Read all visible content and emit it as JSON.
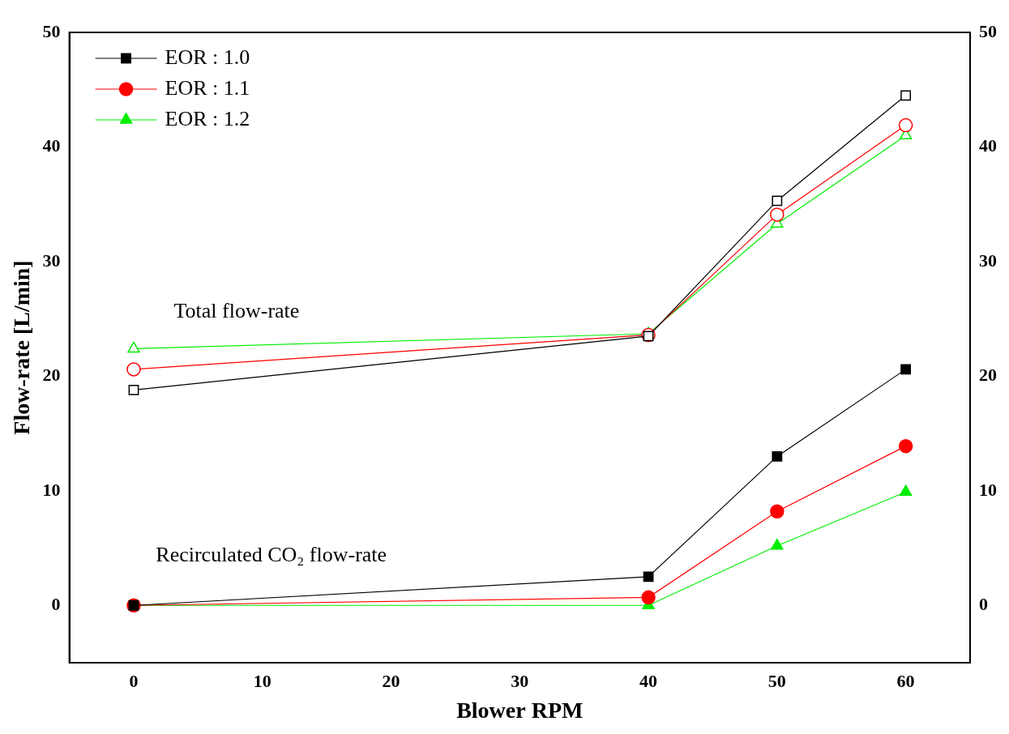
{
  "chart_data": {
    "type": "line",
    "x_label": "Blower RPM",
    "y_label": "Flow-rate [L/min]",
    "x": [
      0,
      40,
      50,
      60
    ],
    "xlim": [
      -5,
      65
    ],
    "xticks": [
      0,
      10,
      20,
      30,
      40,
      50,
      60
    ],
    "ylim": [
      -5,
      50
    ],
    "yticks": [
      0,
      10,
      20,
      30,
      40,
      50
    ],
    "y2lim": [
      -5,
      50
    ],
    "y2ticks": [
      0,
      10,
      20,
      30,
      40,
      50
    ],
    "grid": false,
    "legend": "upper left",
    "annotations": [
      "Total flow-rate",
      "Recirculated CO₂ flow-rate"
    ],
    "series": [
      {
        "name": "EOR : 1.0",
        "color": "#000000",
        "marker": "square",
        "values": [
          0,
          2.5,
          13.0,
          20.6
        ],
        "total": [
          18.8,
          23.5,
          35.3,
          44.5
        ]
      },
      {
        "name": "EOR : 1.1",
        "color": "#ff0000",
        "marker": "circle",
        "values": [
          0,
          0.7,
          8.2,
          13.9
        ],
        "total": [
          20.6,
          23.6,
          34.1,
          41.9
        ]
      },
      {
        "name": "EOR : 1.2",
        "color": "#00ee00",
        "marker": "triangle",
        "values": [
          0,
          0,
          5.2,
          9.9
        ],
        "total": [
          22.4,
          23.7,
          33.3,
          41.0
        ]
      }
    ]
  }
}
